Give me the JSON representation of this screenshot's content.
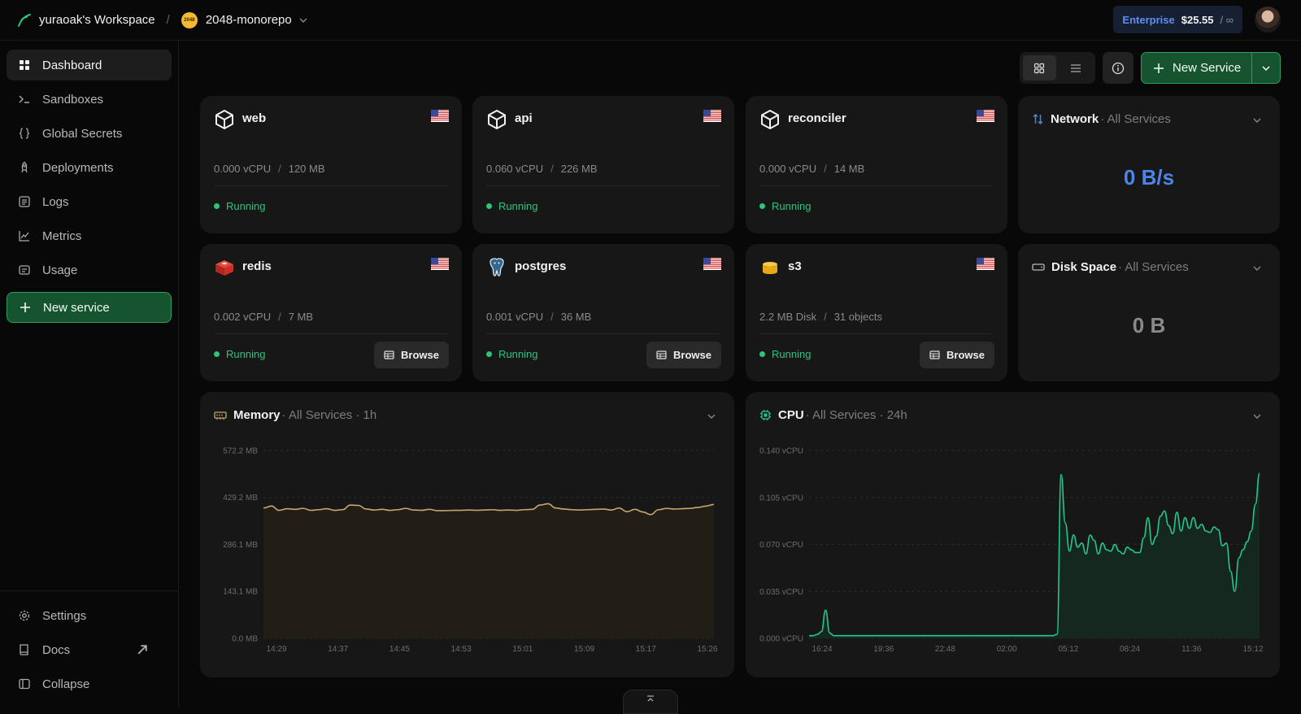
{
  "topbar": {
    "workspace": "yuraoak's Workspace",
    "separator": "/",
    "project_badge": "2048",
    "project": "2048-monorepo",
    "plan_tier": "Enterprise",
    "plan_price": "$25.55",
    "plan_limit": "/ ∞"
  },
  "sidebar": {
    "items": [
      {
        "label": "Dashboard"
      },
      {
        "label": "Sandboxes"
      },
      {
        "label": "Global Secrets"
      },
      {
        "label": "Deployments"
      },
      {
        "label": "Logs"
      },
      {
        "label": "Metrics"
      },
      {
        "label": "Usage"
      }
    ],
    "new_service": "New service",
    "settings": "Settings",
    "docs": "Docs",
    "collapse": "Collapse"
  },
  "toolbar": {
    "new_service": "New Service"
  },
  "services": [
    {
      "name": "web",
      "cpu": "0.000 vCPU",
      "mem": "120 MB",
      "status": "Running"
    },
    {
      "name": "api",
      "cpu": "0.060 vCPU",
      "mem": "226 MB",
      "status": "Running"
    },
    {
      "name": "reconciler",
      "cpu": "0.000 vCPU",
      "mem": "14 MB",
      "status": "Running"
    },
    {
      "name": "redis",
      "cpu": "0.002 vCPU",
      "mem": "7 MB",
      "status": "Running",
      "browse": "Browse"
    },
    {
      "name": "postgres",
      "cpu": "0.001 vCPU",
      "mem": "36 MB",
      "status": "Running",
      "browse": "Browse"
    },
    {
      "name": "s3",
      "cpu": "2.2 MB Disk",
      "mem": "31 objects",
      "status": "Running",
      "browse": "Browse"
    }
  ],
  "network": {
    "title": "Network",
    "sub": "· All Services",
    "value": "0 B/s"
  },
  "disk": {
    "title": "Disk Space",
    "sub": "· All Services",
    "value": "0 B"
  },
  "memory_panel": {
    "title": "Memory",
    "sub": "· All Services · 1h"
  },
  "cpu_panel": {
    "title": "CPU",
    "sub": "· All Services · 24h"
  },
  "colors": {
    "accent_green": "#2fc47c",
    "memory_line": "#c9a572",
    "cpu_line": "#22c98a",
    "network_value": "#4a86e8"
  },
  "chart_data": [
    {
      "type": "area",
      "title": "Memory",
      "subtitle": "All Services · 1h",
      "ylim": [
        0,
        572.2
      ],
      "yticks": [
        "572.2 MB",
        "429.2 MB",
        "286.1 MB",
        "143.1 MB",
        "0.0 MB"
      ],
      "ytick_values": [
        572.2,
        429.2,
        286.1,
        143.1,
        0
      ],
      "xticks": [
        "14:29",
        "14:37",
        "14:45",
        "14:53",
        "15:01",
        "15:09",
        "15:17",
        "15:26"
      ],
      "series": [
        {
          "values": [
            397,
            403,
            390,
            395,
            393,
            396,
            390,
            392,
            395,
            390,
            392,
            406,
            405,
            394,
            391,
            393,
            390,
            392,
            396,
            391,
            390,
            393,
            389,
            389,
            390,
            390,
            391,
            390,
            391,
            392,
            390,
            391,
            390,
            392,
            393,
            406,
            410,
            397,
            394,
            392,
            391,
            392,
            393,
            394,
            391,
            397,
            386,
            393,
            385,
            377,
            392,
            396,
            394,
            395,
            396,
            399,
            403,
            408
          ]
        }
      ]
    },
    {
      "type": "area",
      "title": "CPU",
      "subtitle": "All Services · 24h",
      "ylim": [
        0,
        0.14
      ],
      "yticks": [
        "0.140 vCPU",
        "0.105 vCPU",
        "0.070 vCPU",
        "0.035 vCPU",
        "0.000 vCPU"
      ],
      "ytick_values": [
        0.14,
        0.105,
        0.07,
        0.035,
        0
      ],
      "xticks": [
        "16:24",
        "19:36",
        "22:48",
        "02:00",
        "05:12",
        "08:24",
        "11:36",
        "15:12"
      ],
      "series": [
        {
          "values": [
            0.002,
            0.002,
            0.003,
            0.005,
            0.021,
            0.004,
            0.002,
            0.002,
            0.002,
            0.002,
            0.002,
            0.002,
            0.002,
            0.002,
            0.002,
            0.002,
            0.002,
            0.002,
            0.002,
            0.002,
            0.002,
            0.002,
            0.002,
            0.002,
            0.002,
            0.002,
            0.002,
            0.002,
            0.002,
            0.002,
            0.002,
            0.002,
            0.002,
            0.002,
            0.002,
            0.002,
            0.002,
            0.002,
            0.002,
            0.002,
            0.002,
            0.002,
            0.002,
            0.002,
            0.002,
            0.002,
            0.002,
            0.002,
            0.002,
            0.002,
            0.002,
            0.002,
            0.002,
            0.002,
            0.002,
            0.002,
            0.002,
            0.002,
            0.002,
            0.002,
            0.003,
            0.122,
            0.086,
            0.065,
            0.077,
            0.068,
            0.071,
            0.063,
            0.077,
            0.073,
            0.063,
            0.071,
            0.066,
            0.065,
            0.07,
            0.065,
            0.063,
            0.068,
            0.066,
            0.064,
            0.064,
            0.075,
            0.09,
            0.07,
            0.076,
            0.091,
            0.095,
            0.084,
            0.078,
            0.094,
            0.08,
            0.09,
            0.082,
            0.09,
            0.082,
            0.085,
            0.08,
            0.079,
            0.083,
            0.081,
            0.069,
            0.071,
            0.05,
            0.035,
            0.06,
            0.066,
            0.072,
            0.08,
            0.1,
            0.123
          ]
        }
      ]
    }
  ]
}
